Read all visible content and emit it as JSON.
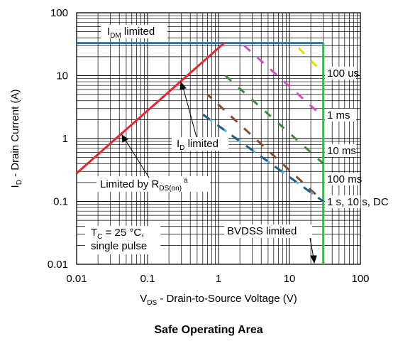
{
  "chart_data": {
    "type": "line",
    "title": "Safe Operating Area",
    "xlabel": {
      "main": "V",
      "sub": "DS",
      "rest": " - Drain-to-Source Voltage (V)"
    },
    "ylabel": {
      "main": "I",
      "sub": "D",
      "rest": " - Drain Current (A)"
    },
    "xscale": "log",
    "yscale": "log",
    "xlim": [
      0.01,
      100
    ],
    "ylim": [
      0.01,
      100
    ],
    "x_ticks": [
      "0.01",
      "0.1",
      "1",
      "10",
      "100"
    ],
    "y_ticks": [
      "100",
      "10",
      "1",
      "0.1",
      "0.01"
    ],
    "grid": true,
    "series": [
      {
        "name": "IDM limited",
        "color": "#2e75b6",
        "style": "solid",
        "x": [
          0.01,
          30
        ],
        "y": [
          33,
          33
        ]
      },
      {
        "name": "Limited by RDS(on)",
        "color": "#e8262b",
        "style": "solid",
        "x": [
          0.01,
          1.2
        ],
        "y": [
          0.28,
          33
        ]
      },
      {
        "name": "BVDSS limited",
        "color": "#3fb34f",
        "style": "solid",
        "x": [
          30,
          30
        ],
        "y": [
          0.01,
          33
        ]
      },
      {
        "name": "100 us",
        "color": "#e0e000",
        "style": "dashed",
        "x": [
          11.5,
          30
        ],
        "y": [
          33,
          11
        ]
      },
      {
        "name": "1 ms",
        "color": "#d04fc4",
        "style": "dashed",
        "x": [
          2.1,
          30
        ],
        "y": [
          33,
          2.2
        ]
      },
      {
        "name": "10 ms",
        "color": "#3e8a3a",
        "style": "dashed",
        "x": [
          1.25,
          30
        ],
        "y": [
          10,
          0.4
        ]
      },
      {
        "name": "100 ms",
        "color": "#8b4a2a",
        "style": "dashed",
        "x": [
          0.7,
          30
        ],
        "y": [
          5,
          0.1
        ]
      },
      {
        "name": "1 s, 10 s, DC",
        "color": "#4fb8e0",
        "style": "dashed",
        "x": [
          0.5,
          30
        ],
        "y": [
          2.8,
          0.1
        ]
      },
      {
        "name": "1 s, 10 s, DC (2)",
        "color": "#1f5f8a",
        "style": "dashed",
        "x": [
          0.5,
          30
        ],
        "y": [
          2.8,
          0.1
        ]
      }
    ],
    "annotations": {
      "idm": {
        "main": "I",
        "sub": "DM",
        "rest": " limited"
      },
      "id_limited": {
        "main": "I",
        "sub": "D",
        "rest": " limited"
      },
      "rds": {
        "main": "Limited by R",
        "sub": "DS(on)",
        "sup": "a"
      },
      "tc_line1": {
        "main": "T",
        "sub": "C",
        "rest": " = 25 °C,"
      },
      "tc_line2": "single pulse",
      "bvdss": "BVDSS limited",
      "l100us": "100 us",
      "l1ms": "1 ms",
      "l10ms": "10 ms",
      "l100ms": "100 ms",
      "ldc": "1 s, 10 s, DC"
    }
  }
}
